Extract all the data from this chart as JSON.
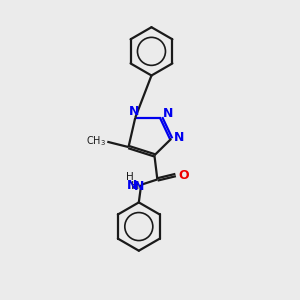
{
  "background_color": "#ebebeb",
  "bond_color": "#1a1a1a",
  "N_color": "#0000ee",
  "O_color": "#ee0000",
  "line_width": 1.6,
  "figsize": [
    3.0,
    3.0
  ],
  "dpi": 100,
  "xlim": [
    0,
    10
  ],
  "ylim": [
    0,
    10
  ]
}
